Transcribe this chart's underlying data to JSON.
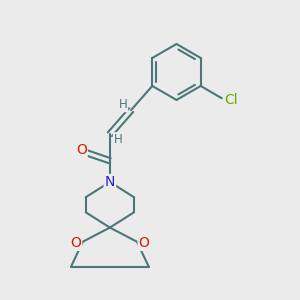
{
  "background_color": "#ebebeb",
  "bond_color": "#4a7878",
  "bond_width": 1.5,
  "atom_colors": {
    "O": "#cc2200",
    "N": "#2222cc",
    "Cl": "#66aa00",
    "H": "#4a7878",
    "C": "#4a7878"
  },
  "font_size_atom": 10,
  "font_size_H": 8.5,
  "font_size_Cl": 10
}
